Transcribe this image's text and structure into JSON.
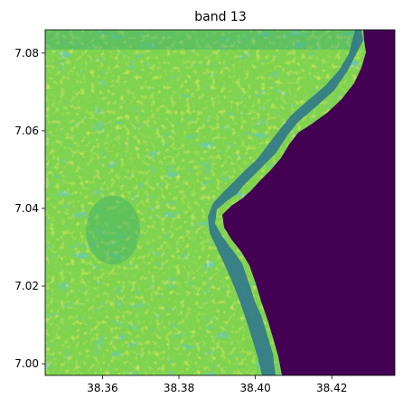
{
  "figure": {
    "title": "band 13",
    "colormap": "viridis",
    "colors": {
      "water": "#440154",
      "coast_blue": "#2a5d8e",
      "mid_teal": "#21918c",
      "green": "#5ec962",
      "light_green": "#9fda3a",
      "yellow": "#fde725"
    }
  },
  "axes": {
    "x_ticks": [
      {
        "value": 38.36,
        "label": "38.36"
      },
      {
        "value": 38.38,
        "label": "38.38"
      },
      {
        "value": 38.4,
        "label": "38.40"
      },
      {
        "value": 38.42,
        "label": "38.42"
      }
    ],
    "y_ticks": [
      {
        "value": 7.0,
        "label": "7.00"
      },
      {
        "value": 7.02,
        "label": "7.02"
      },
      {
        "value": 7.04,
        "label": "7.04"
      },
      {
        "value": 7.06,
        "label": "7.06"
      },
      {
        "value": 7.08,
        "label": "7.08"
      }
    ],
    "xlim": [
      38.345,
      38.4365
    ],
    "ylim": [
      7.086,
      6.997
    ]
  }
}
